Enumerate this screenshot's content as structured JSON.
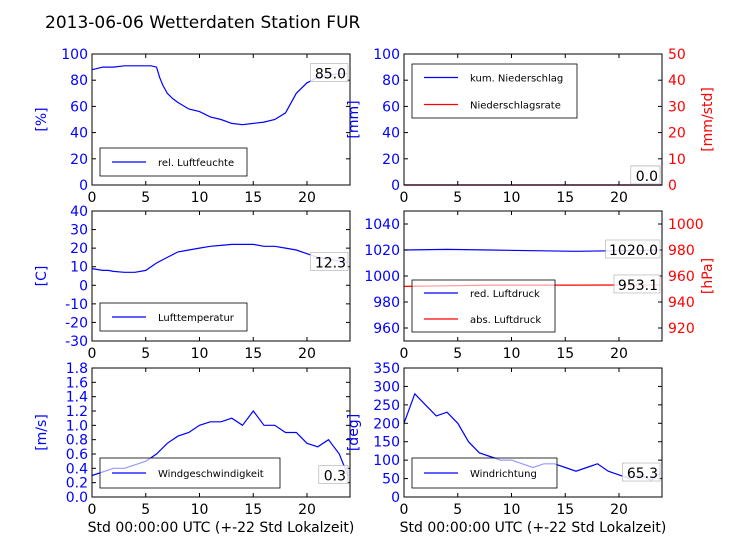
{
  "figure_title": "2013-06-06 Wetterdaten Station FUR",
  "colors": {
    "primary": "#0000ff",
    "secondary": "#ff0000",
    "frame": "#000000"
  },
  "chart_data": [
    {
      "id": "p1",
      "type": "line",
      "ylabel": "[%]",
      "xlabel": "",
      "xlim": [
        0,
        24
      ],
      "ylim": [
        0,
        100
      ],
      "xticks": [
        "0",
        "5",
        "10",
        "15",
        "20"
      ],
      "yticks": [
        "0",
        "20",
        "40",
        "60",
        "80",
        "100"
      ],
      "legend": "bottom-left",
      "last_value": "85.0",
      "series": [
        {
          "name": "rel. Luftfeuchte",
          "axis": "left",
          "x": [
            0,
            0.5,
            1,
            2,
            3,
            4,
            5,
            5.5,
            6,
            6.3,
            6.6,
            7,
            7.5,
            8,
            9,
            10,
            11,
            12,
            13,
            14,
            15,
            16,
            17,
            18,
            19,
            20,
            21,
            22,
            23,
            23.8
          ],
          "y": [
            88,
            89,
            90,
            90,
            91,
            91,
            91,
            91,
            90,
            82,
            76,
            70,
            66,
            63,
            58,
            56,
            52,
            50,
            47,
            46,
            47,
            48,
            50,
            55,
            70,
            78,
            82,
            84,
            85,
            85
          ]
        }
      ]
    },
    {
      "id": "p2",
      "type": "line",
      "ylabel": "[mm]",
      "y2label": "[mm/std]",
      "xlabel": "",
      "xlim": [
        0,
        24
      ],
      "ylim": [
        0,
        100
      ],
      "y2lim": [
        0,
        50
      ],
      "xticks": [
        "0",
        "5",
        "10",
        "15",
        "20"
      ],
      "yticks": [
        "0",
        "20",
        "40",
        "60",
        "80",
        "100"
      ],
      "y2ticks": [
        "0",
        "10",
        "20",
        "30",
        "40",
        "50"
      ],
      "legend": "top-left",
      "last_values": [
        "0.0",
        "0.0"
      ],
      "series": [
        {
          "name": "kum. Niederschlag",
          "axis": "left",
          "x": [
            0,
            24
          ],
          "y": [
            0,
            0
          ]
        },
        {
          "name": "Niederschlagsrate",
          "axis": "right",
          "x": [
            0,
            24
          ],
          "y": [
            0,
            0
          ]
        }
      ]
    },
    {
      "id": "p3",
      "type": "line",
      "ylabel": "[C]",
      "xlabel": "",
      "xlim": [
        0,
        24
      ],
      "ylim": [
        -30,
        40
      ],
      "xticks": [
        "0",
        "5",
        "10",
        "15",
        "20"
      ],
      "yticks": [
        "-30",
        "-20",
        "-10",
        "0",
        "10",
        "20",
        "30",
        "40"
      ],
      "legend": "bottom-left",
      "last_value": "12.3",
      "series": [
        {
          "name": "Lufttemperatur",
          "axis": "left",
          "x": [
            0,
            0.5,
            1,
            1.5,
            2,
            3,
            4,
            5,
            6,
            7,
            8,
            9,
            10,
            11,
            12,
            13,
            14,
            15,
            16,
            17,
            18,
            19,
            20,
            21,
            22,
            23,
            23.8
          ],
          "y": [
            9,
            8.5,
            8,
            8,
            7.5,
            7,
            7,
            8,
            12,
            15,
            18,
            19,
            20,
            21,
            21.5,
            22,
            22,
            22,
            21,
            21,
            20,
            19,
            17,
            15,
            14,
            13,
            12.3
          ]
        }
      ]
    },
    {
      "id": "p4",
      "type": "line",
      "ylabel": "",
      "y2label": "[hPa]",
      "xlabel": "",
      "xlim": [
        0,
        24
      ],
      "ylim": [
        950,
        1050
      ],
      "y2lim": [
        910,
        1010
      ],
      "xticks": [
        "0",
        "5",
        "10",
        "15",
        "20"
      ],
      "yticks": [
        "960",
        "980",
        "1000",
        "1020",
        "1040"
      ],
      "y2ticks": [
        "920",
        "940",
        "960",
        "980",
        "1000"
      ],
      "legend": "bottom-left",
      "last_values": [
        "1020.0",
        "953.1"
      ],
      "series": [
        {
          "name": "red. Luftdruck",
          "axis": "left",
          "x": [
            0,
            4,
            8,
            12,
            16,
            20,
            23.8
          ],
          "y": [
            1020,
            1020.5,
            1020,
            1019.5,
            1019,
            1019.5,
            1020
          ]
        },
        {
          "name": "abs. Luftdruck",
          "axis": "right",
          "x": [
            0,
            4,
            8,
            12,
            16,
            20,
            23.8
          ],
          "y": [
            952,
            952.5,
            953,
            953,
            953,
            953.1,
            953.1
          ]
        }
      ]
    },
    {
      "id": "p5",
      "type": "line",
      "ylabel": "[m/s]",
      "xlabel": "Std 00:00:00 UTC (+-22 Std Lokalzeit)",
      "xlim": [
        0,
        24
      ],
      "ylim": [
        0,
        1.8
      ],
      "xticks": [
        "0",
        "5",
        "10",
        "15",
        "20"
      ],
      "yticks": [
        "0.0",
        "0.2",
        "0.4",
        "0.6",
        "0.8",
        "1.0",
        "1.2",
        "1.4",
        "1.6",
        "1.8"
      ],
      "legend": "bottom-left",
      "last_value": "0.3",
      "series": [
        {
          "name": "Windgeschwindigkeit",
          "axis": "left",
          "x": [
            0,
            1,
            2,
            3,
            4,
            5,
            6,
            7,
            8,
            9,
            10,
            11,
            12,
            13,
            14,
            15,
            16,
            17,
            18,
            19,
            20,
            21,
            22,
            23,
            23.8
          ],
          "y": [
            0.3,
            0.35,
            0.4,
            0.4,
            0.45,
            0.5,
            0.6,
            0.75,
            0.85,
            0.9,
            1.0,
            1.05,
            1.05,
            1.1,
            1.0,
            1.2,
            1.0,
            1.0,
            0.9,
            0.9,
            0.75,
            0.7,
            0.8,
            0.6,
            0.3
          ]
        }
      ]
    },
    {
      "id": "p6",
      "type": "line",
      "ylabel": "[deg]",
      "xlabel": "Std 00:00:00 UTC (+-22 Std Lokalzeit)",
      "xlim": [
        0,
        24
      ],
      "ylim": [
        0,
        350
      ],
      "xticks": [
        "0",
        "5",
        "10",
        "15",
        "20"
      ],
      "yticks": [
        "0",
        "50",
        "100",
        "150",
        "200",
        "250",
        "300",
        "350"
      ],
      "legend": "bottom-left",
      "last_value": "65.3",
      "series": [
        {
          "name": "Windrichtung",
          "axis": "left",
          "x": [
            0,
            1,
            2,
            3,
            4,
            5,
            6,
            7,
            8,
            9,
            10,
            11,
            12,
            13,
            14,
            15,
            16,
            17,
            18,
            19,
            20,
            21,
            22,
            23,
            23.8
          ],
          "y": [
            200,
            280,
            250,
            220,
            230,
            200,
            150,
            120,
            110,
            100,
            100,
            90,
            80,
            90,
            90,
            80,
            70,
            80,
            90,
            70,
            60,
            50,
            60,
            45,
            65
          ]
        }
      ]
    }
  ]
}
